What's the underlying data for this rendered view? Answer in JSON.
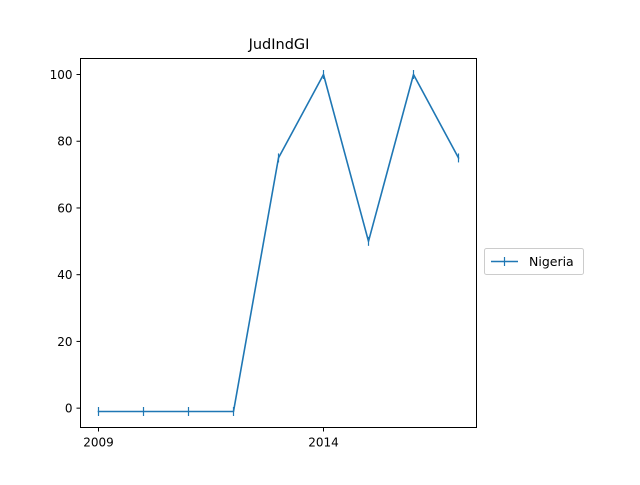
{
  "chart_data": {
    "type": "line",
    "title": "JudIndGI",
    "xlabel": "",
    "ylabel": "",
    "x": [
      2009,
      2010,
      2011,
      2012,
      2013,
      2014,
      2015,
      2016,
      2017
    ],
    "xlim": [
      2008.6,
      2017.4
    ],
    "ylim": [
      -5.8,
      104.8
    ],
    "xticks": [
      2009,
      2014
    ],
    "yticks": [
      0,
      20,
      40,
      60,
      80,
      100
    ],
    "grid": false,
    "legend_position": "right",
    "series": [
      {
        "name": "Nigeria",
        "color": "#1f77b4",
        "marker": "vline",
        "values": [
          -1,
          -1,
          -1,
          -1,
          75,
          100,
          50,
          100,
          75
        ]
      }
    ]
  }
}
